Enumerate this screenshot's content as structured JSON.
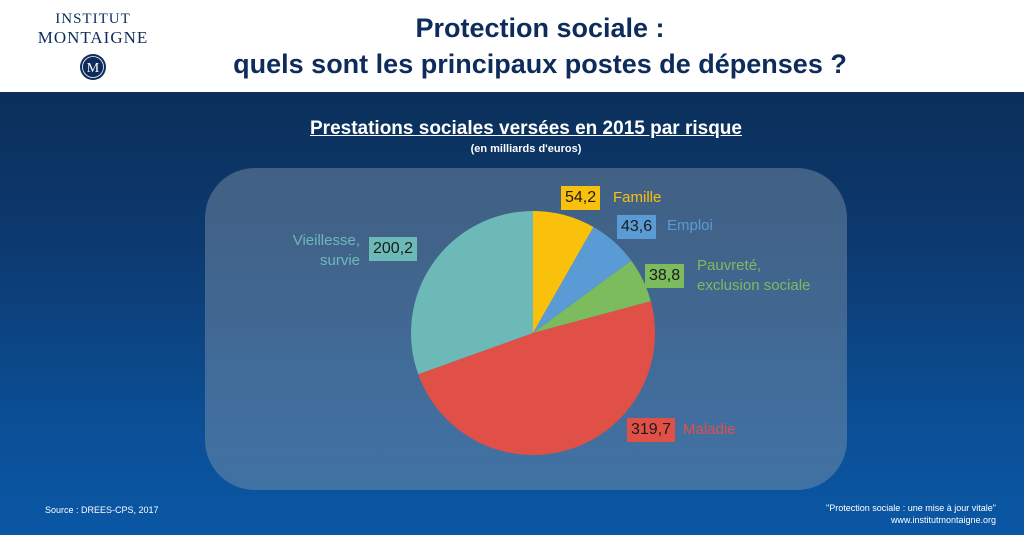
{
  "header": {
    "logo_line1": "INSTITUT",
    "logo_line2": "MONTAIGNE",
    "logo_seal_letter": "M",
    "title_line1": "Protection sociale :",
    "title_line2": "quels sont les principaux postes de dépenses ?"
  },
  "chart_data": {
    "type": "pie",
    "title": "Prestations sociales versées en 2015 par risque",
    "subtitle": "(en milliards d'euros)",
    "slices": [
      {
        "label": "Famille",
        "value": 54.2,
        "display": "54,2",
        "color": "#f9c00c"
      },
      {
        "label": "Emploi",
        "value": 43.6,
        "display": "43,6",
        "color": "#5b9bd5"
      },
      {
        "label_line1": "Pauvreté,",
        "label_line2": "exclusion sociale",
        "value": 38.8,
        "display": "38,8",
        "color": "#7cbb5e"
      },
      {
        "label": "Maladie",
        "value": 319.7,
        "display": "319,7",
        "color": "#e05046"
      },
      {
        "label_line1": "Vieillesse,",
        "label_line2": "survie",
        "value": 200.2,
        "display": "200,2",
        "color": "#6cb9b8"
      }
    ]
  },
  "footer": {
    "source": "Source : DREES-CPS, 2017",
    "credit_line1": "\"Protection sociale : une mise à jour vitale\"",
    "credit_line2": "www.institutmontaigne.org"
  }
}
